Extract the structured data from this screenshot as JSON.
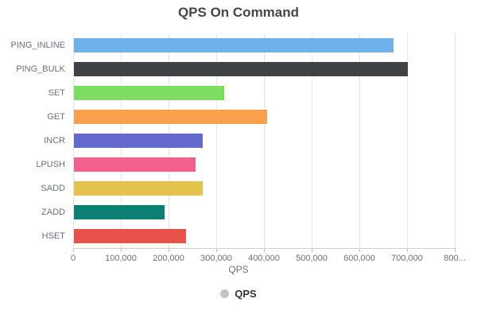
{
  "title": "QPS On Command",
  "legend": {
    "label": "QPS",
    "marker_color": "#c0c4cc"
  },
  "x_axis_title": "QPS",
  "chart_data": {
    "type": "bar",
    "orientation": "horizontal",
    "title": "QPS On Command",
    "xlabel": "QPS",
    "ylabel": "",
    "categories": [
      "PING_INLINE",
      "PING_BULK",
      "SET",
      "GET",
      "INCR",
      "LPUSH",
      "SADD",
      "ZADD",
      "HSET"
    ],
    "values": [
      670000,
      700000,
      315000,
      405000,
      270000,
      255000,
      270000,
      190000,
      235000
    ],
    "bar_colors": [
      "#6fb1ea",
      "#3f4346",
      "#7ddd63",
      "#f8a04e",
      "#6569cd",
      "#f2608c",
      "#e3c34a",
      "#0e7f74",
      "#e8524a"
    ],
    "xlim": [
      0,
      800000
    ],
    "xticks": [
      0,
      100000,
      200000,
      300000,
      400000,
      500000,
      600000,
      700000,
      800000
    ],
    "xtick_labels": [
      "0",
      "100,000",
      "200,000",
      "300,000",
      "400,000",
      "500,000",
      "600,000",
      "700,000",
      "800..."
    ],
    "grid": true,
    "legend_entries": [
      "QPS"
    ],
    "legend_position": "bottom"
  }
}
